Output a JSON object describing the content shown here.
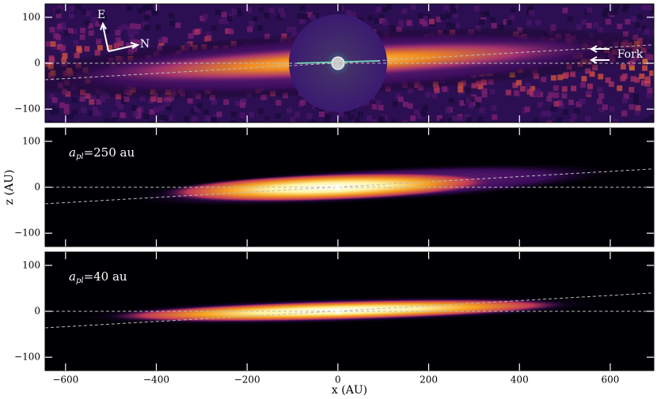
{
  "chart_data": [
    {
      "type": "image",
      "xlim": [
        -645,
        696
      ],
      "ylim": [
        -129,
        129
      ],
      "xticks": [
        -600,
        -400,
        -200,
        0,
        200,
        400,
        600
      ],
      "yticks": [
        {
          "value": -100,
          "label": "−100"
        },
        0,
        100
      ],
      "reference_line": {
        "x": [
          -645,
          696
        ],
        "y": [
          -36,
          40
        ]
      },
      "compass": [
        "E",
        "N"
      ],
      "annotation": "Fork"
    },
    {
      "type": "image",
      "xlim": [
        -645,
        696
      ],
      "ylim": [
        -129,
        129
      ],
      "xticks": [
        -600,
        -400,
        -200,
        0,
        200,
        400,
        600
      ],
      "yticks": [
        {
          "value": -100,
          "label": "−100"
        },
        0,
        100
      ],
      "reference_line": {
        "x": [
          -645,
          696
        ],
        "y": [
          -36,
          40
        ]
      },
      "label_parts": [
        "a",
        "pl",
        "=250 au"
      ],
      "ylabel": "z (AU)"
    },
    {
      "type": "image",
      "xlim": [
        -645,
        696
      ],
      "ylim": [
        -129,
        129
      ],
      "xticks": [
        {
          "value": -600,
          "label": "−600"
        },
        {
          "value": -400,
          "label": "−400"
        },
        {
          "value": -200,
          "label": "−200"
        },
        0,
        200,
        400,
        600
      ],
      "yticks": [
        {
          "value": -100,
          "label": "−100"
        },
        0,
        100
      ],
      "reference_line": {
        "x": [
          -645,
          696
        ],
        "y": [
          -36,
          40
        ]
      },
      "label_parts": [
        "a",
        "pl",
        "=40 au"
      ],
      "xlabel": "x (AU)"
    }
  ]
}
